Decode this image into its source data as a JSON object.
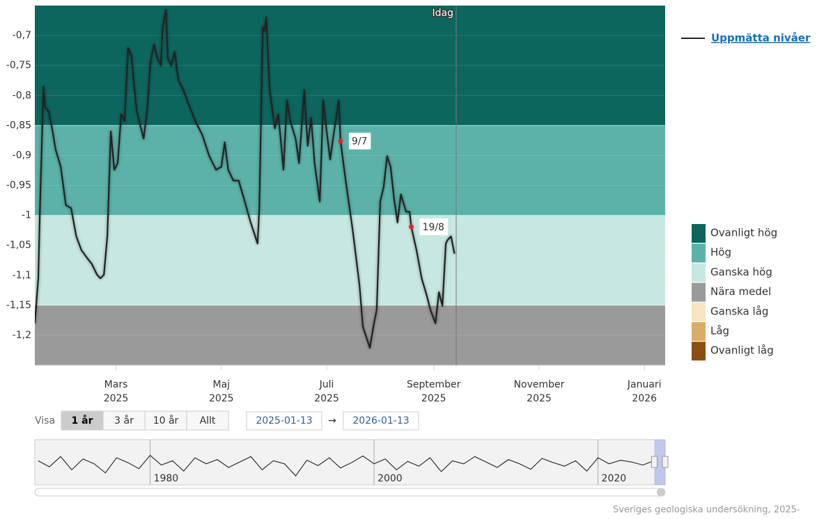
{
  "chart_data": {
    "type": "line",
    "xlim": [
      "2025-01-13",
      "2026-01-13"
    ],
    "ylim": [
      -1.25,
      -0.65
    ],
    "yticks": [
      {
        "value": -0.7,
        "label": "-0,7"
      },
      {
        "value": -0.75,
        "label": "-0,75"
      },
      {
        "value": -0.8,
        "label": "-0,8"
      },
      {
        "value": -0.85,
        "label": "-0,85"
      },
      {
        "value": -0.9,
        "label": "-0,9"
      },
      {
        "value": -0.95,
        "label": "-0,95"
      },
      {
        "value": -1,
        "label": "-1"
      },
      {
        "value": -1.05,
        "label": "-1,05"
      },
      {
        "value": -1.1,
        "label": "-1,1"
      },
      {
        "value": -1.15,
        "label": "-1,15"
      },
      {
        "value": -1.2,
        "label": "-1,2"
      }
    ],
    "xticks": [
      {
        "value": "2025-03-01",
        "label": [
          "Mars",
          "2025"
        ]
      },
      {
        "value": "2025-05-01",
        "label": [
          "Maj",
          "2025"
        ]
      },
      {
        "value": "2025-07-01",
        "label": [
          "Juli",
          "2025"
        ]
      },
      {
        "value": "2025-09-01",
        "label": [
          "September",
          "2025"
        ]
      },
      {
        "value": "2025-11-01",
        "label": [
          "November",
          "2025"
        ]
      },
      {
        "value": "2026-01-01",
        "label": [
          "Januari",
          "2026"
        ]
      }
    ],
    "grid": true,
    "bands": [
      {
        "name": "Ovanligt hög",
        "color": "#0d665e",
        "low": -0.85,
        "high": null
      },
      {
        "name": "Hög",
        "color": "#5cb2a8",
        "low": -1,
        "high": -0.85
      },
      {
        "name": "Ganska hög",
        "color": "#c7e8e2",
        "low": -1.15,
        "high": -1
      },
      {
        "name": "Nära medel",
        "color": "#9a9a9a",
        "low": null,
        "high": -1.15
      },
      {
        "name": "Ganska låg",
        "color": "#f6e4c4"
      },
      {
        "name": "Låg",
        "color": "#d9ad68"
      },
      {
        "name": "Ovanligt låg",
        "color": "#8a4f12"
      }
    ],
    "series": [
      {
        "name": "Uppmätta nivåer",
        "color": "#222222",
        "x": [
          "2025-01-13",
          "2025-01-15",
          "2025-01-16",
          "2025-01-18",
          "2025-01-19",
          "2025-01-21",
          "2025-01-23",
          "2025-01-25",
          "2025-01-28",
          "2025-01-31",
          "2025-02-03",
          "2025-02-06",
          "2025-02-09",
          "2025-02-12",
          "2025-02-15",
          "2025-02-18",
          "2025-02-20",
          "2025-02-22",
          "2025-02-24",
          "2025-02-26",
          "2025-02-28",
          "2025-03-02",
          "2025-03-04",
          "2025-03-06",
          "2025-03-08",
          "2025-03-10",
          "2025-03-11",
          "2025-03-13",
          "2025-03-17",
          "2025-03-19",
          "2025-03-21",
          "2025-03-23",
          "2025-03-25",
          "2025-03-27",
          "2025-03-28",
          "2025-03-30",
          "2025-03-31",
          "2025-04-02",
          "2025-04-04",
          "2025-04-06",
          "2025-04-09",
          "2025-04-12",
          "2025-04-16",
          "2025-04-20",
          "2025-04-24",
          "2025-04-28",
          "2025-05-01",
          "2025-05-03",
          "2025-05-05",
          "2025-05-08",
          "2025-05-11",
          "2025-05-14",
          "2025-05-18",
          "2025-05-22",
          "2025-05-23",
          "2025-05-25",
          "2025-05-26",
          "2025-05-27",
          "2025-05-29",
          "2025-06-01",
          "2025-06-03",
          "2025-06-06",
          "2025-06-08",
          "2025-06-10",
          "2025-06-13",
          "2025-06-15",
          "2025-06-18",
          "2025-06-20",
          "2025-06-22",
          "2025-06-24",
          "2025-06-27",
          "2025-06-29",
          "2025-07-01",
          "2025-07-03",
          "2025-07-05",
          "2025-07-08",
          "2025-07-09",
          "2025-07-12",
          "2025-07-16",
          "2025-07-20",
          "2025-07-22",
          "2025-07-26",
          "2025-07-28",
          "2025-07-30",
          "2025-08-01",
          "2025-08-03",
          "2025-08-05",
          "2025-08-07",
          "2025-08-09",
          "2025-08-11",
          "2025-08-13",
          "2025-08-16",
          "2025-08-18",
          "2025-08-19",
          "2025-08-22",
          "2025-08-25",
          "2025-08-28",
          "2025-08-30",
          "2025-09-02",
          "2025-09-04",
          "2025-09-06",
          "2025-09-08",
          "2025-09-09",
          "2025-09-11",
          "2025-09-13"
        ],
        "values": [
          -1.18,
          -1.105,
          -0.988,
          -0.785,
          -0.82,
          -0.826,
          -0.855,
          -0.89,
          -0.919,
          -0.983,
          -0.988,
          -1.035,
          -1.058,
          -1.07,
          -1.081,
          -1.099,
          -1.105,
          -1.099,
          -1.035,
          -0.86,
          -0.924,
          -0.913,
          -0.831,
          -0.843,
          -0.721,
          -0.733,
          -0.767,
          -0.826,
          -0.872,
          -0.826,
          -0.744,
          -0.715,
          -0.738,
          -0.75,
          -0.686,
          -0.657,
          -0.738,
          -0.75,
          -0.727,
          -0.773,
          -0.791,
          -0.814,
          -0.843,
          -0.866,
          -0.901,
          -0.924,
          -0.919,
          -0.878,
          -0.924,
          -0.942,
          -0.942,
          -0.971,
          -1.012,
          -1.047,
          -0.988,
          -0.686,
          -0.692,
          -0.669,
          -0.791,
          -0.855,
          -0.831,
          -0.924,
          -0.808,
          -0.843,
          -0.872,
          -0.913,
          -0.791,
          -0.884,
          -0.837,
          -0.913,
          -0.977,
          -0.808,
          -0.86,
          -0.907,
          -0.866,
          -0.808,
          -0.876,
          -0.942,
          -1.023,
          -1.116,
          -1.186,
          -1.221,
          -1.186,
          -1.157,
          -0.977,
          -0.953,
          -0.901,
          -0.919,
          -0.971,
          -1.012,
          -0.965,
          -0.994,
          -0.994,
          -1.019,
          -1.058,
          -1.105,
          -1.134,
          -1.157,
          -1.18,
          -1.128,
          -1.151,
          -1.047,
          -1.041,
          -1.035,
          -1.064
        ]
      }
    ],
    "annotations": [
      {
        "label": "9/7",
        "x": "2025-07-09",
        "y": -0.876
      },
      {
        "label": "19/8",
        "x": "2025-08-19",
        "y": -1.019
      }
    ],
    "today": {
      "label": "Idag",
      "x": "2025-09-14"
    },
    "navigator": {
      "xlim": [
        1969.7,
        2026
      ],
      "ylim": [
        -1.35,
        -0.6
      ],
      "xticks": [
        1980,
        2000,
        2020
      ],
      "x": [
        1970,
        1971,
        1972,
        1973,
        1974,
        1975,
        1976,
        1977,
        1978,
        1979,
        1980,
        1981,
        1982,
        1983,
        1984,
        1985,
        1986,
        1987,
        1988,
        1989,
        1990,
        1991,
        1992,
        1993,
        1994,
        1995,
        1996,
        1997,
        1998,
        1999,
        2000,
        2001,
        2002,
        2003,
        2004,
        2005,
        2006,
        2007,
        2008,
        2009,
        2010,
        2011,
        2012,
        2013,
        2014,
        2015,
        2016,
        2017,
        2018,
        2019,
        2020,
        2021,
        2022,
        2023,
        2024,
        2025
      ],
      "values": [
        -0.95,
        -1.05,
        -0.88,
        -1.1,
        -0.92,
        -1.0,
        -1.15,
        -0.9,
        -0.98,
        -1.08,
        -0.86,
        -1.02,
        -0.95,
        -1.12,
        -0.9,
        -1.0,
        -0.93,
        -1.06,
        -0.97,
        -0.88,
        -1.1,
        -0.95,
        -1.0,
        -1.2,
        -0.94,
        -1.03,
        -0.9,
        -1.07,
        -0.98,
        -0.87,
        -1.0,
        -0.92,
        -1.1,
        -0.96,
        -1.04,
        -0.9,
        -1.13,
        -0.95,
        -1.0,
        -0.88,
        -0.97,
        -1.06,
        -0.93,
        -1.0,
        -1.09,
        -0.91,
        -0.98,
        -1.04,
        -0.95,
        -1.12,
        -0.9,
        -1.0,
        -0.94,
        -0.97,
        -1.02,
        -0.95
      ]
    }
  },
  "ui": {
    "range_label": "Visa",
    "range_buttons": [
      "1 år",
      "3 år",
      "10 år",
      "Allt"
    ],
    "selected_button": 0,
    "date_from": "2025-01-13",
    "arrow": "→",
    "date_to": "2026-01-13",
    "credit": "Sveriges geologiska undersökning, 2025-"
  }
}
